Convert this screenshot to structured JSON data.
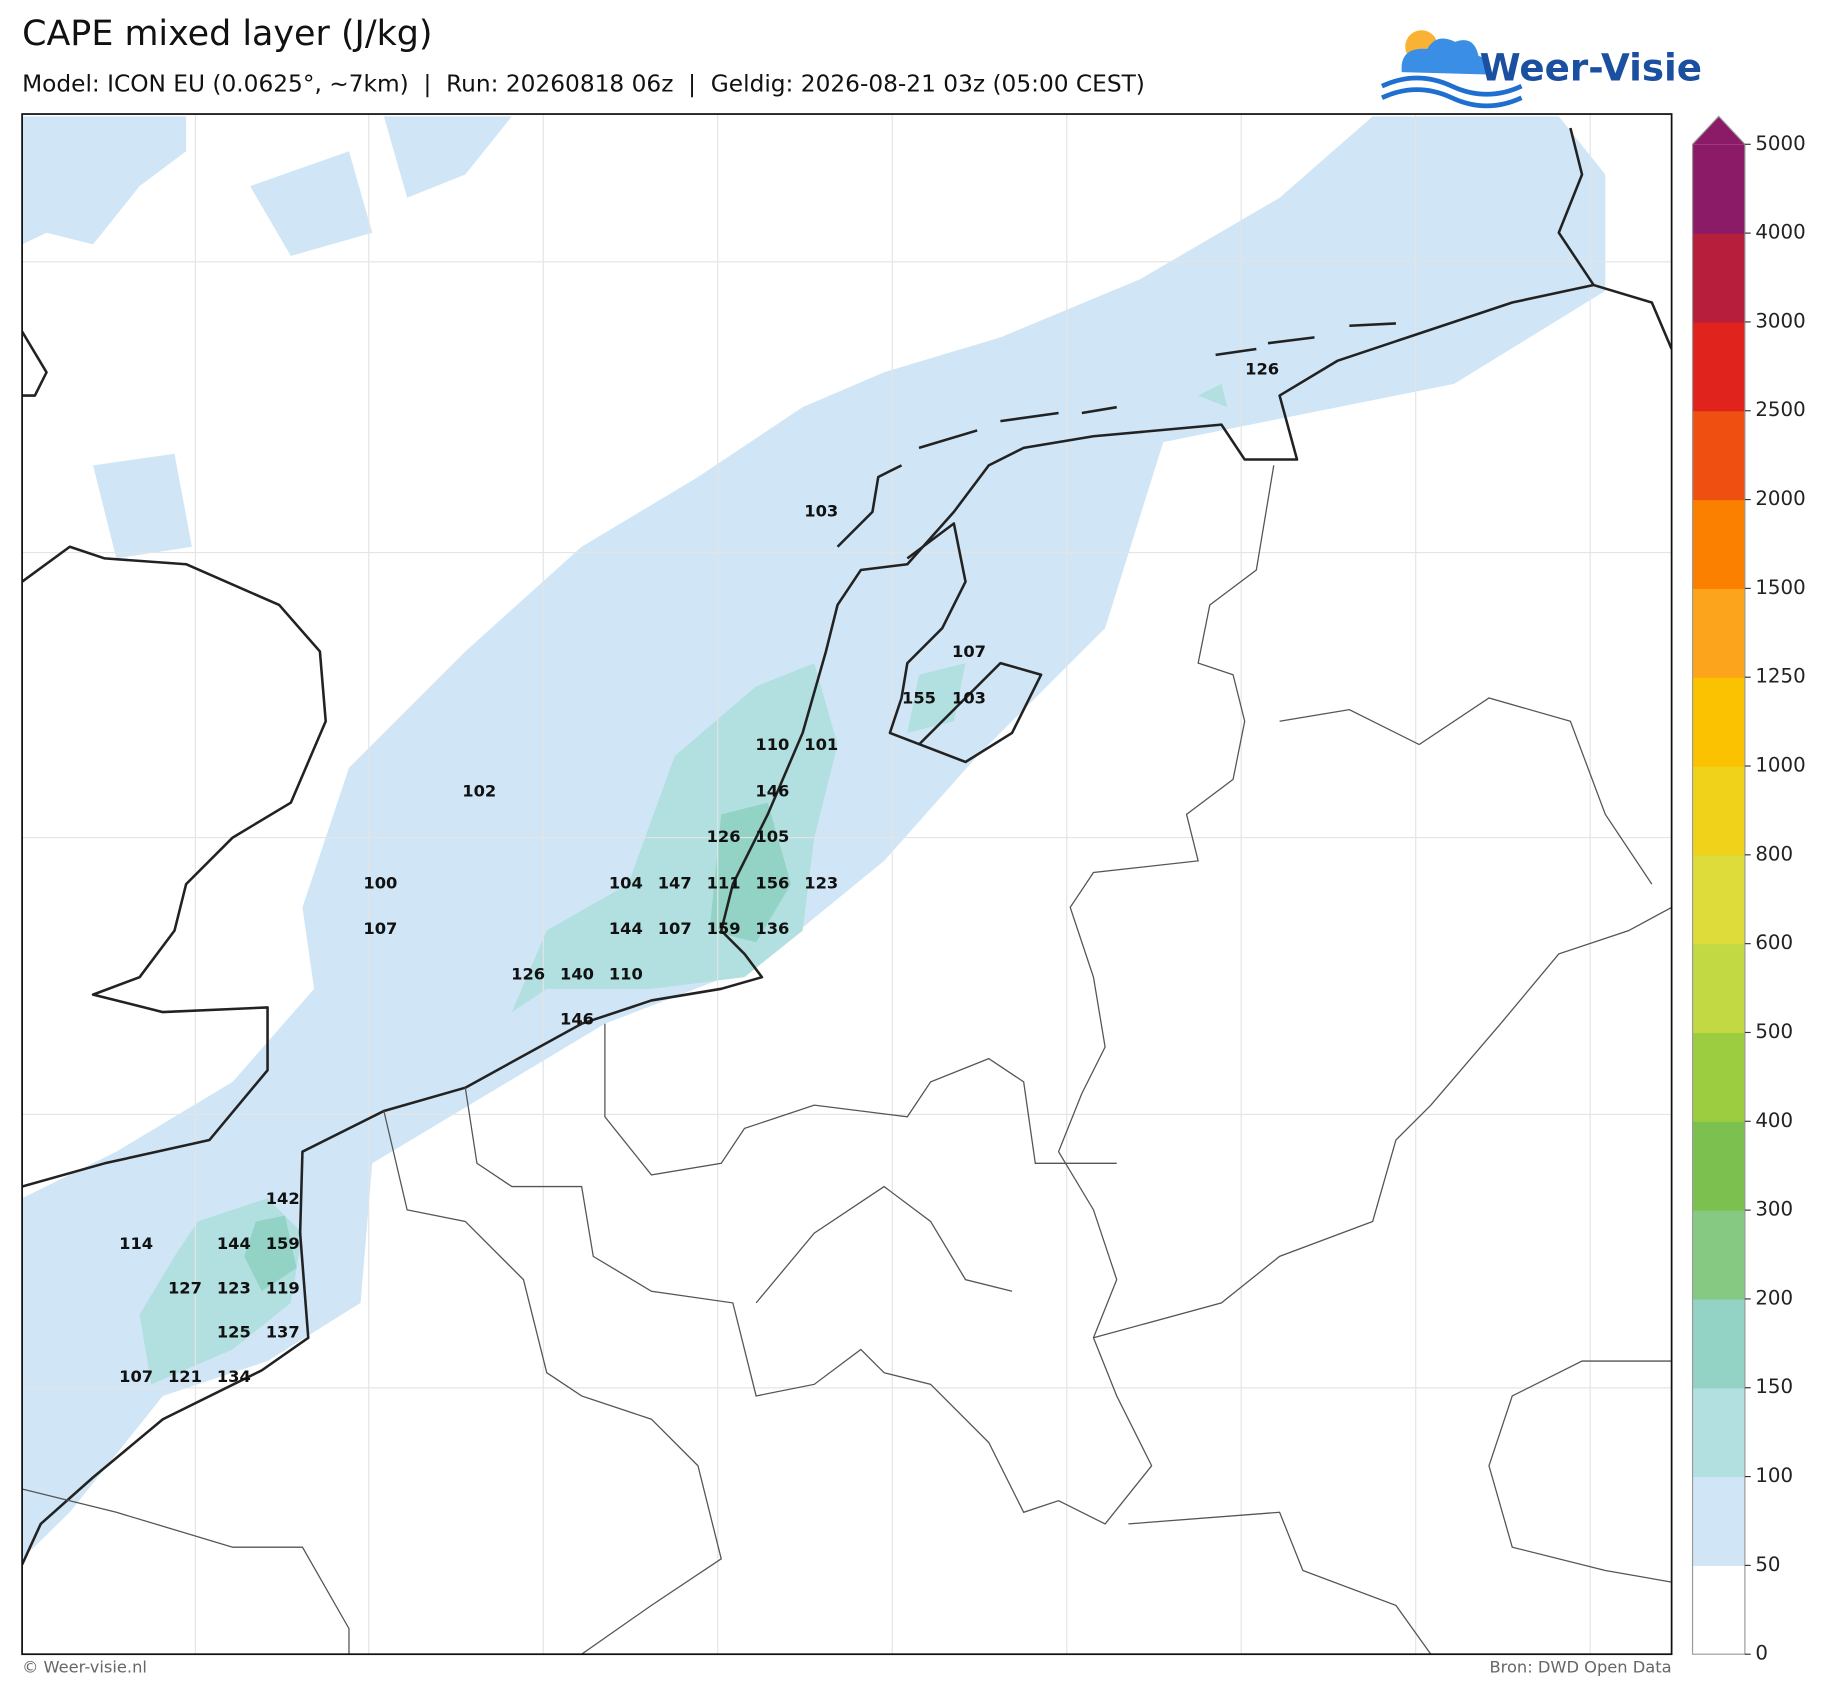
{
  "header": {
    "title": "CAPE mixed layer (J/kg)",
    "subtitle": "Model: ICON EU (0.0625°, ~7km)  |  Run: 20260818 06z  |  Geldig: 2026-08-21 03z (05:00 CEST)",
    "logo": "Weer-Visie"
  },
  "map": {
    "point_values": [
      103,
      107,
      155,
      103,
      110,
      101,
      102,
      146,
      126,
      105,
      100,
      104,
      147,
      111,
      156,
      123,
      107,
      144,
      107,
      159,
      136,
      126,
      140,
      110,
      146,
      126,
      142,
      114,
      144,
      159,
      127,
      123,
      119,
      125,
      137,
      107,
      121,
      134
    ]
  },
  "colorbar": {
    "ticks": [
      0,
      50,
      100,
      150,
      200,
      300,
      400,
      500,
      600,
      800,
      1000,
      1250,
      1500,
      2000,
      2500,
      3000,
      4000,
      5000
    ],
    "colors": [
      "#ffffff",
      "#d0e6f6",
      "#b2dfe0",
      "#93d3c5",
      "#86c983",
      "#7cc14f",
      "#9ccc3f",
      "#c2d944",
      "#dddc3a",
      "#f0d21a",
      "#fac200",
      "#fca41c",
      "#fb8000",
      "#ef5012",
      "#e0231d",
      "#b61e3b",
      "#8b1b67"
    ]
  },
  "footer": {
    "left": "© Weer-visie.nl",
    "right": "Bron: DWD Open Data"
  }
}
